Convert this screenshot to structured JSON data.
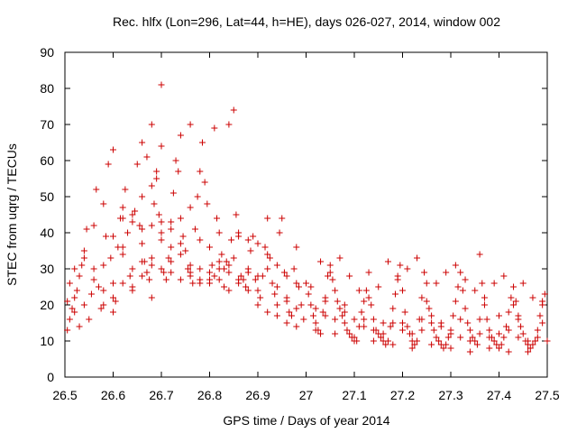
{
  "chart_data": {
    "type": "scatter",
    "title": "Rec. hlfx (Lon=296, Lat=44, h=HE), days 026-027, 2014, window 002",
    "xlabel": "GPS time / Days of year 2014",
    "ylabel": "STEC from uqrg / TECUs",
    "xlim": [
      26.5,
      27.5
    ],
    "ylim": [
      0,
      90
    ],
    "xticks": [
      26.5,
      26.6,
      26.7,
      26.8,
      26.9,
      27,
      27.1,
      27.2,
      27.3,
      27.4,
      27.5
    ],
    "xtick_labels": [
      "26.5",
      "26.6",
      "26.7",
      "26.8",
      "26.9",
      "27",
      "27.1",
      "27.2",
      "27.3",
      "27.4",
      "27.5"
    ],
    "yticks": [
      0,
      10,
      20,
      30,
      40,
      50,
      60,
      70,
      80,
      90
    ],
    "ytick_labels": [
      "0",
      "10",
      "20",
      "30",
      "40",
      "50",
      "60",
      "70",
      "80",
      "90"
    ],
    "marker": "plus",
    "color": "#cc0000",
    "points": [
      [
        26.505,
        13
      ],
      [
        26.51,
        16
      ],
      [
        26.515,
        19
      ],
      [
        26.52,
        22
      ],
      [
        26.525,
        24
      ],
      [
        26.53,
        28
      ],
      [
        26.535,
        31
      ],
      [
        26.54,
        33
      ],
      [
        26.545,
        41
      ],
      [
        26.505,
        21
      ],
      [
        26.51,
        26
      ],
      [
        26.52,
        18
      ],
      [
        26.53,
        14
      ],
      [
        26.54,
        20
      ],
      [
        26.55,
        16
      ],
      [
        26.555,
        23
      ],
      [
        26.56,
        30
      ],
      [
        26.565,
        52
      ],
      [
        26.57,
        25
      ],
      [
        26.575,
        19
      ],
      [
        26.58,
        31
      ],
      [
        26.585,
        39
      ],
      [
        26.59,
        59
      ],
      [
        26.595,
        33
      ],
      [
        26.6,
        26
      ],
      [
        26.605,
        21
      ],
      [
        26.61,
        36
      ],
      [
        26.615,
        44
      ],
      [
        26.62,
        47
      ],
      [
        26.625,
        52
      ],
      [
        26.63,
        40
      ],
      [
        26.635,
        28
      ],
      [
        26.64,
        24
      ],
      [
        26.645,
        46
      ],
      [
        26.65,
        59
      ],
      [
        26.655,
        42
      ],
      [
        26.66,
        37
      ],
      [
        26.665,
        32
      ],
      [
        26.67,
        29
      ],
      [
        26.675,
        27
      ],
      [
        26.68,
        22
      ],
      [
        26.685,
        48
      ],
      [
        26.69,
        55
      ],
      [
        26.695,
        45
      ],
      [
        26.7,
        38
      ],
      [
        26.705,
        29
      ],
      [
        26.71,
        27
      ],
      [
        26.715,
        33
      ],
      [
        26.72,
        43
      ],
      [
        26.725,
        51
      ],
      [
        26.73,
        60
      ],
      [
        26.735,
        57
      ],
      [
        26.74,
        44
      ],
      [
        26.745,
        39
      ],
      [
        26.75,
        35
      ],
      [
        26.755,
        30
      ],
      [
        26.76,
        28
      ],
      [
        26.765,
        26
      ],
      [
        26.77,
        41
      ],
      [
        26.775,
        50
      ],
      [
        26.78,
        57
      ],
      [
        26.785,
        65
      ],
      [
        26.79,
        54
      ],
      [
        26.795,
        48
      ],
      [
        26.8,
        36
      ],
      [
        26.805,
        31
      ],
      [
        26.81,
        28
      ],
      [
        26.815,
        44
      ],
      [
        26.82,
        40
      ],
      [
        26.825,
        34
      ],
      [
        26.83,
        30
      ],
      [
        26.835,
        32
      ],
      [
        26.84,
        29
      ],
      [
        26.845,
        38
      ],
      [
        26.85,
        33
      ],
      [
        26.855,
        45
      ],
      [
        26.86,
        40
      ],
      [
        26.865,
        28
      ],
      [
        26.87,
        27
      ],
      [
        26.875,
        25
      ],
      [
        26.88,
        30
      ],
      [
        26.885,
        35
      ],
      [
        26.89,
        39
      ],
      [
        26.895,
        27
      ],
      [
        26.9,
        24
      ],
      [
        26.905,
        22
      ],
      [
        26.91,
        28
      ],
      [
        26.915,
        36
      ],
      [
        26.92,
        44
      ],
      [
        26.925,
        33
      ],
      [
        26.93,
        26
      ],
      [
        26.935,
        23
      ],
      [
        26.94,
        20
      ],
      [
        26.945,
        40
      ],
      [
        26.95,
        44
      ],
      [
        26.955,
        29
      ],
      [
        26.96,
        22
      ],
      [
        26.965,
        18
      ],
      [
        26.97,
        17
      ],
      [
        26.975,
        30
      ],
      [
        26.98,
        36
      ],
      [
        26.985,
        25
      ],
      [
        26.99,
        20
      ],
      [
        26.995,
        16
      ],
      [
        26.62,
        34
      ],
      [
        26.64,
        30
      ],
      [
        26.66,
        28
      ],
      [
        26.68,
        31
      ],
      [
        26.7,
        43
      ],
      [
        26.72,
        41
      ],
      [
        26.74,
        37
      ],
      [
        26.76,
        47
      ],
      [
        26.78,
        38
      ],
      [
        26.8,
        27
      ],
      [
        26.82,
        30
      ],
      [
        26.84,
        70
      ],
      [
        26.68,
        70
      ],
      [
        26.7,
        64
      ],
      [
        26.74,
        67
      ],
      [
        26.76,
        70
      ],
      [
        26.81,
        69
      ],
      [
        26.85,
        74
      ],
      [
        26.7,
        81
      ],
      [
        26.66,
        65
      ],
      [
        26.67,
        61
      ],
      [
        26.69,
        57
      ],
      [
        26.6,
        63
      ],
      [
        26.58,
        48
      ],
      [
        26.56,
        42
      ],
      [
        26.54,
        35
      ],
      [
        26.52,
        30
      ],
      [
        26.56,
        27
      ],
      [
        26.58,
        24
      ],
      [
        26.6,
        22
      ],
      [
        26.62,
        36
      ],
      [
        26.64,
        43
      ],
      [
        26.66,
        50
      ],
      [
        26.68,
        53
      ],
      [
        26.72,
        32
      ],
      [
        26.78,
        27
      ],
      [
        26.8,
        26
      ],
      [
        26.83,
        25
      ],
      [
        26.86,
        26
      ],
      [
        26.88,
        24
      ],
      [
        26.9,
        20
      ],
      [
        26.92,
        18
      ],
      [
        26.94,
        17
      ],
      [
        26.96,
        15
      ],
      [
        26.98,
        14
      ],
      [
        26.58,
        20
      ],
      [
        26.6,
        18
      ],
      [
        26.62,
        26
      ],
      [
        26.64,
        25
      ],
      [
        26.66,
        32
      ],
      [
        26.68,
        33
      ],
      [
        26.7,
        30
      ],
      [
        26.72,
        29
      ],
      [
        26.74,
        27
      ],
      [
        26.76,
        29
      ],
      [
        26.78,
        26
      ],
      [
        26.82,
        27
      ],
      [
        26.84,
        24
      ],
      [
        26.86,
        27
      ],
      [
        26.88,
        29
      ],
      [
        26.9,
        28
      ],
      [
        26.92,
        30
      ],
      [
        26.94,
        25
      ],
      [
        26.96,
        21
      ],
      [
        26.98,
        19
      ],
      [
        26.6,
        39
      ],
      [
        26.62,
        44
      ],
      [
        26.64,
        45
      ],
      [
        26.66,
        41
      ],
      [
        26.68,
        42
      ],
      [
        26.7,
        40
      ],
      [
        26.72,
        36
      ],
      [
        26.74,
        34
      ],
      [
        26.76,
        31
      ],
      [
        26.78,
        30
      ],
      [
        26.8,
        29
      ],
      [
        26.82,
        32
      ],
      [
        26.84,
        31
      ],
      [
        26.86,
        39
      ],
      [
        26.88,
        38
      ],
      [
        26.9,
        37
      ],
      [
        26.92,
        34
      ],
      [
        26.94,
        31
      ],
      [
        26.96,
        28
      ],
      [
        26.98,
        26
      ],
      [
        27,
        26
      ],
      [
        27.005,
        23
      ],
      [
        27.01,
        20
      ],
      [
        27.015,
        17
      ],
      [
        27.02,
        15
      ],
      [
        27.025,
        13
      ],
      [
        27.03,
        12
      ],
      [
        27.035,
        18
      ],
      [
        27.04,
        22
      ],
      [
        27.045,
        28
      ],
      [
        27.05,
        31
      ],
      [
        27.055,
        27
      ],
      [
        27.06,
        24
      ],
      [
        27.065,
        21
      ],
      [
        27.07,
        19
      ],
      [
        27.075,
        17
      ],
      [
        27.08,
        15
      ],
      [
        27.085,
        13
      ],
      [
        27.09,
        12
      ],
      [
        27.095,
        11
      ],
      [
        27.1,
        10
      ],
      [
        27.105,
        10
      ],
      [
        27.11,
        14
      ],
      [
        27.115,
        18
      ],
      [
        27.12,
        21
      ],
      [
        27.125,
        24
      ],
      [
        27.13,
        29
      ],
      [
        27.135,
        20
      ],
      [
        27.14,
        16
      ],
      [
        27.145,
        13
      ],
      [
        27.15,
        12
      ],
      [
        27.155,
        11
      ],
      [
        27.16,
        10
      ],
      [
        27.165,
        9
      ],
      [
        27.17,
        10
      ],
      [
        27.175,
        14
      ],
      [
        27.18,
        19
      ],
      [
        27.185,
        23
      ],
      [
        27.19,
        27
      ],
      [
        27.195,
        31
      ],
      [
        27.2,
        24
      ],
      [
        27.205,
        18
      ],
      [
        27.21,
        14
      ],
      [
        27.215,
        12
      ],
      [
        27.22,
        10
      ],
      [
        27.225,
        9
      ],
      [
        27.23,
        10
      ],
      [
        27.235,
        16
      ],
      [
        27.24,
        22
      ],
      [
        27.245,
        29
      ],
      [
        27.25,
        26
      ],
      [
        27.255,
        19
      ],
      [
        27.26,
        15
      ],
      [
        27.265,
        13
      ],
      [
        27.27,
        11
      ],
      [
        27.275,
        10
      ],
      [
        27.28,
        9
      ],
      [
        27.285,
        8
      ],
      [
        27.29,
        9
      ],
      [
        27.295,
        11
      ],
      [
        27.3,
        13
      ],
      [
        27.305,
        17
      ],
      [
        27.31,
        21
      ],
      [
        27.315,
        25
      ],
      [
        27.32,
        29
      ],
      [
        27.325,
        24
      ],
      [
        27.33,
        19
      ],
      [
        27.335,
        15
      ],
      [
        27.34,
        13
      ],
      [
        27.345,
        11
      ],
      [
        27.35,
        10
      ],
      [
        27.355,
        9
      ],
      [
        27.36,
        34
      ],
      [
        27.365,
        26
      ],
      [
        27.37,
        20
      ],
      [
        27.375,
        16
      ],
      [
        27.38,
        13
      ],
      [
        27.385,
        11
      ],
      [
        27.39,
        10
      ],
      [
        27.395,
        9
      ],
      [
        27.4,
        8
      ],
      [
        27.405,
        9
      ],
      [
        27.41,
        11
      ],
      [
        27.415,
        14
      ],
      [
        27.42,
        18
      ],
      [
        27.425,
        22
      ],
      [
        27.43,
        25
      ],
      [
        27.435,
        21
      ],
      [
        27.44,
        17
      ],
      [
        27.445,
        14
      ],
      [
        27.45,
        12
      ],
      [
        27.455,
        10
      ],
      [
        27.46,
        9
      ],
      [
        27.465,
        8
      ],
      [
        27.47,
        9
      ],
      [
        27.475,
        10
      ],
      [
        27.48,
        13
      ],
      [
        27.485,
        17
      ],
      [
        27.49,
        21
      ],
      [
        27.495,
        23
      ],
      [
        27.01,
        25
      ],
      [
        27.03,
        32
      ],
      [
        27.05,
        29
      ],
      [
        27.07,
        33
      ],
      [
        27.09,
        28
      ],
      [
        27.11,
        24
      ],
      [
        27.13,
        22
      ],
      [
        27.15,
        25
      ],
      [
        27.17,
        32
      ],
      [
        27.19,
        28
      ],
      [
        27.21,
        30
      ],
      [
        27.23,
        33
      ],
      [
        27.25,
        21
      ],
      [
        27.27,
        26
      ],
      [
        27.29,
        29
      ],
      [
        27.31,
        31
      ],
      [
        27.33,
        27
      ],
      [
        27.35,
        24
      ],
      [
        27.37,
        22
      ],
      [
        27.39,
        26
      ],
      [
        27.41,
        28
      ],
      [
        27.43,
        20
      ],
      [
        27.45,
        26
      ],
      [
        27.47,
        22
      ],
      [
        27.49,
        20
      ],
      [
        27.02,
        19
      ],
      [
        27.04,
        17
      ],
      [
        27.06,
        16
      ],
      [
        27.08,
        18
      ],
      [
        27.1,
        16
      ],
      [
        27.12,
        14
      ],
      [
        27.14,
        13
      ],
      [
        27.16,
        12
      ],
      [
        27.18,
        15
      ],
      [
        27.2,
        13
      ],
      [
        27.22,
        12
      ],
      [
        27.24,
        13
      ],
      [
        27.26,
        17
      ],
      [
        27.28,
        14
      ],
      [
        27.3,
        12
      ],
      [
        27.32,
        11
      ],
      [
        27.34,
        10
      ],
      [
        27.36,
        12
      ],
      [
        27.38,
        11
      ],
      [
        27.4,
        12
      ],
      [
        27.42,
        13
      ],
      [
        27.44,
        11
      ],
      [
        27.46,
        10
      ],
      [
        27.48,
        11
      ],
      [
        27.02,
        13
      ],
      [
        27.06,
        12
      ],
      [
        27.1,
        11
      ],
      [
        27.14,
        10
      ],
      [
        27.18,
        9
      ],
      [
        27.22,
        8
      ],
      [
        27.26,
        9
      ],
      [
        27.3,
        8
      ],
      [
        27.34,
        7
      ],
      [
        27.38,
        8
      ],
      [
        27.42,
        7
      ],
      [
        27.46,
        7
      ],
      [
        27.5,
        10
      ],
      [
        27.49,
        15
      ],
      [
        27.44,
        16
      ],
      [
        27.4,
        17
      ],
      [
        27.36,
        16
      ],
      [
        27.32,
        16
      ],
      [
        27.28,
        15
      ],
      [
        27.24,
        16
      ],
      [
        27.2,
        15
      ],
      [
        27.16,
        15
      ],
      [
        27.12,
        16
      ],
      [
        27.08,
        20
      ],
      [
        27.04,
        21
      ]
    ]
  }
}
